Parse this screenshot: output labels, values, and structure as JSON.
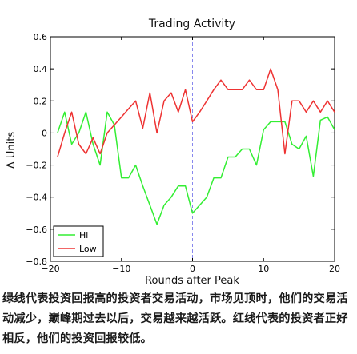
{
  "chart_data": {
    "type": "line",
    "title": "Trading Activity",
    "xlabel": "Rounds after Peak",
    "ylabel": "Δ Units",
    "xlim": [
      -20,
      20
    ],
    "ylim": [
      -0.8,
      0.6
    ],
    "xticks": [
      -20,
      -10,
      0,
      10,
      20
    ],
    "xtick_labels": [
      "−20",
      "−10",
      "0",
      "10",
      "20"
    ],
    "yticks": [
      -0.8,
      -0.6,
      -0.4,
      -0.2,
      0,
      0.2,
      0.4,
      0.6
    ],
    "ytick_labels": [
      "−0.8",
      "−0.6",
      "−0.4",
      "−0.2",
      "0",
      "0.2",
      "0.4",
      "0.6"
    ],
    "grid": false,
    "legend_position": "bottom-left",
    "peak_marker_x": 0,
    "series": [
      {
        "name": "Hi",
        "color": "#33ee33",
        "x": [
          -19,
          -18,
          -17,
          -16,
          -15,
          -14,
          -13,
          -12,
          -11,
          -10,
          -9,
          -8,
          -7,
          -6,
          -5,
          -4,
          -3,
          -2,
          -1,
          0,
          1,
          2,
          3,
          4,
          5,
          6,
          7,
          8,
          9,
          10,
          11,
          12,
          13,
          14,
          15,
          16,
          17,
          18,
          19,
          20
        ],
        "y": [
          0,
          0.13,
          -0.07,
          0,
          0.13,
          -0.07,
          -0.2,
          0.13,
          0.05,
          -0.28,
          -0.28,
          -0.2,
          -0.33,
          -0.45,
          -0.57,
          -0.45,
          -0.4,
          -0.33,
          -0.33,
          -0.5,
          -0.45,
          -0.4,
          -0.28,
          -0.28,
          -0.15,
          -0.15,
          -0.1,
          -0.1,
          -0.2,
          0.02,
          0.07,
          0.07,
          0.07,
          -0.07,
          -0.1,
          -0.02,
          -0.27,
          0.08,
          0.1,
          0.02
        ]
      },
      {
        "name": "Low",
        "color": "#ee3333",
        "x": [
          -19,
          -18,
          -17,
          -16,
          -15,
          -14,
          -13,
          -12,
          -11,
          -10,
          -9,
          -8,
          -7,
          -6,
          -5,
          -4,
          -3,
          -2,
          -1,
          0,
          1,
          2,
          3,
          4,
          5,
          6,
          7,
          8,
          9,
          10,
          11,
          12,
          13,
          14,
          15,
          16,
          17,
          18,
          19,
          20
        ],
        "y": [
          -0.15,
          0,
          0.13,
          -0.07,
          -0.13,
          -0.03,
          -0.13,
          0,
          0.05,
          0.1,
          0.15,
          0.2,
          0.03,
          0.25,
          0,
          0.2,
          0.25,
          0.13,
          0.27,
          0.07,
          0.13,
          0.2,
          0.27,
          0.33,
          0.27,
          0.27,
          0.27,
          0.33,
          0.27,
          0.27,
          0.4,
          0.27,
          -0.13,
          0.2,
          0.2,
          0.13,
          0.2,
          0.13,
          0.2,
          0.13
        ]
      }
    ]
  },
  "caption": "绿线代表投资回报高的投资者交易活动，市场见顶时，他们的交易活动减少，巅峰期过去以后，交易越来越活跃。红线代表的投资者正好相反，他们的投资回报较低。"
}
